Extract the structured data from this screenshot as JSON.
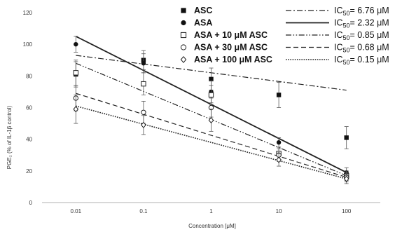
{
  "chart_data": {
    "type": "scatter",
    "x_scale": "log",
    "x": [
      "0.01",
      "0.1",
      "1",
      "10",
      "100"
    ],
    "xlabel": "Concentration [μM]",
    "ylabel": "PGE₂ (% of IL-1β control)",
    "ylim": [
      0,
      120
    ],
    "y_ticks": [
      "0",
      "20",
      "40",
      "60",
      "80",
      "100",
      "120"
    ],
    "grid": false,
    "legend_position": "top-right",
    "series": [
      {
        "name": "ASC",
        "marker": "filled-square",
        "ic50_label": "IC",
        "ic50_sub": "50",
        "ic50_value": "= 6.76 μM",
        "line_style": "dash-dot",
        "values": [
          81,
          90,
          78,
          68,
          41
        ],
        "errors": [
          8,
          6,
          7,
          8,
          7
        ],
        "fit": [
          93,
          71
        ]
      },
      {
        "name": "ASA",
        "marker": "filled-circle",
        "ic50_label": "IC",
        "ic50_sub": "50",
        "ic50_value": "= 2.32 μM",
        "line_style": "solid",
        "values": [
          100,
          88,
          70,
          38,
          19
        ],
        "errors": [
          5,
          6,
          7,
          3,
          3
        ],
        "fit": [
          105,
          19
        ]
      },
      {
        "name": "ASA + 10 μM ASC",
        "marker": "open-square",
        "ic50_label": "IC",
        "ic50_sub": "50",
        "ic50_value": "= 0.85 μM",
        "line_style": "dash-dot-dot",
        "values": [
          82,
          75,
          68,
          31,
          17
        ],
        "errors": [
          8,
          7,
          6,
          4,
          3
        ],
        "fit": [
          88,
          17
        ]
      },
      {
        "name": "ASA + 30 μM ASC",
        "marker": "open-circle",
        "ic50_label": "IC",
        "ic50_sub": "50",
        "ic50_value": "= 0.68 μM",
        "line_style": "dashed",
        "values": [
          66,
          57,
          60,
          30,
          16
        ],
        "errors": [
          8,
          7,
          6,
          4,
          3
        ],
        "fit": [
          69,
          16
        ]
      },
      {
        "name": "ASA + 100 μM ASC",
        "marker": "open-diamond",
        "ic50_label": "IC",
        "ic50_sub": "50",
        "ic50_value": "= 0.15 μM",
        "line_style": "dotted",
        "values": [
          59,
          49,
          52,
          27,
          15
        ],
        "errors": [
          9,
          6,
          7,
          4,
          3
        ],
        "fit": [
          61,
          15
        ]
      }
    ]
  }
}
